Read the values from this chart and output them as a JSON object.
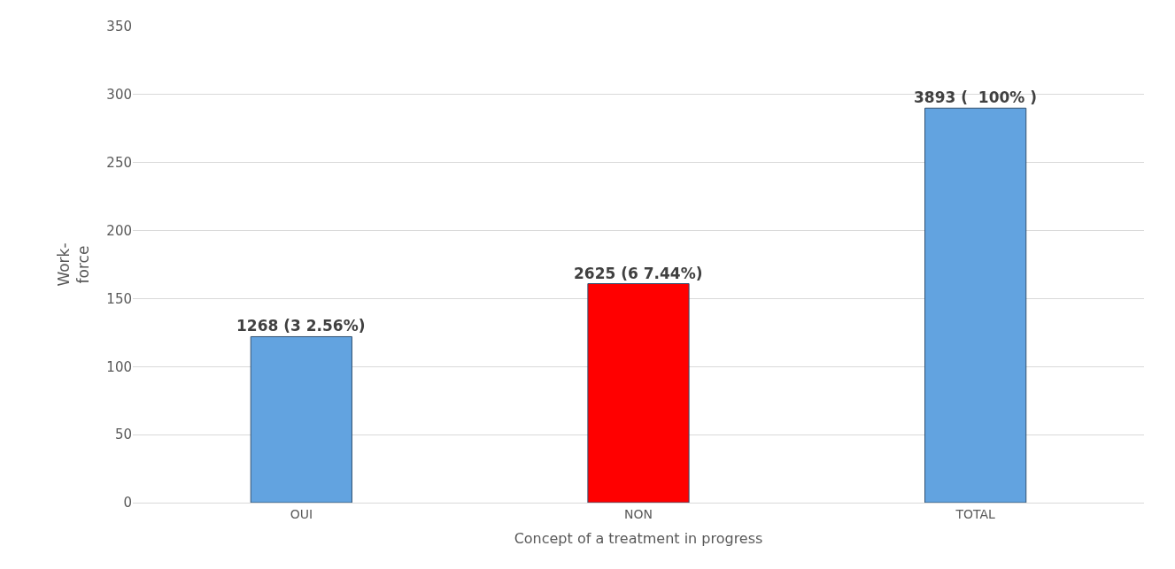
{
  "chart_data": {
    "type": "bar",
    "xlabel": "Concept of a treatment in progress",
    "ylabel": "Work-\nforce",
    "categories": [
      "OUI",
      "NON",
      "TOTAL"
    ],
    "values": [
      122,
      161,
      290
    ],
    "colors": [
      "#62a3e0",
      "#ff0000",
      "#62a3e0"
    ],
    "annotations": [
      {
        "text": "1268 (3 2.56%)",
        "x": "OUI",
        "y": 122
      },
      {
        "text": "2625 (6 7.44%)",
        "x": "NON",
        "y": 161
      },
      {
        "text": "3893 (  100% )",
        "x": "TOTAL",
        "y": 290
      }
    ],
    "ylim": [
      0,
      350
    ],
    "yticks": [
      0,
      50,
      100,
      150,
      200,
      250,
      300,
      350
    ],
    "grid": "y"
  }
}
